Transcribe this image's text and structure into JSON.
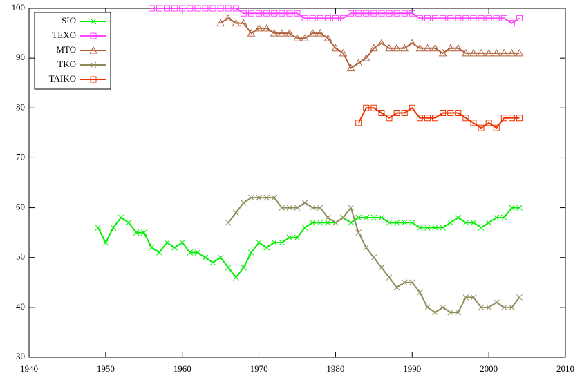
{
  "chart_data": {
    "type": "line",
    "xlim": [
      1940,
      2010
    ],
    "xticks": [
      1940,
      1950,
      1960,
      1970,
      1980,
      1990,
      2000,
      2010
    ],
    "ylim": [
      30,
      100
    ],
    "yticks": [
      30,
      40,
      50,
      60,
      70,
      80,
      90,
      100
    ],
    "legend": "top-left",
    "series": [
      {
        "name": "SIO",
        "color": "#00ee00",
        "marker": "cross",
        "x": [
          1949,
          1950,
          1951,
          1952,
          1953,
          1954,
          1955,
          1956,
          1957,
          1958,
          1959,
          1960,
          1961,
          1962,
          1963,
          1964,
          1965,
          1966,
          1967,
          1968,
          1969,
          1970,
          1971,
          1972,
          1973,
          1974,
          1975,
          1976,
          1977,
          1978,
          1979,
          1980,
          1981,
          1982,
          1983,
          1984,
          1985,
          1986,
          1987,
          1988,
          1989,
          1990,
          1991,
          1992,
          1993,
          1994,
          1995,
          1996,
          1997,
          1998,
          1999,
          2000,
          2001,
          2002,
          2003,
          2004
        ],
        "values": [
          56,
          53,
          56,
          58,
          57,
          55,
          55,
          52,
          51,
          53,
          52,
          53,
          51,
          51,
          50,
          49,
          50,
          48,
          46,
          48,
          51,
          53,
          52,
          53,
          53,
          54,
          54,
          56,
          57,
          57,
          57,
          57,
          58,
          57,
          58,
          58,
          58,
          58,
          57,
          57,
          57,
          57,
          56,
          56,
          56,
          56,
          57,
          58,
          57,
          57,
          56,
          57,
          58,
          58,
          60,
          60
        ]
      },
      {
        "name": "TEXO",
        "color": "#ff44ff",
        "marker": "square",
        "x": [
          1956,
          1957,
          1958,
          1959,
          1960,
          1961,
          1962,
          1963,
          1964,
          1965,
          1966,
          1967,
          1968,
          1969,
          1970,
          1971,
          1972,
          1973,
          1974,
          1975,
          1976,
          1977,
          1978,
          1979,
          1980,
          1981,
          1982,
          1983,
          1984,
          1985,
          1986,
          1987,
          1988,
          1989,
          1990,
          1991,
          1992,
          1993,
          1994,
          1995,
          1996,
          1997,
          1998,
          1999,
          2000,
          2001,
          2002,
          2003,
          2004
        ],
        "values": [
          100,
          100,
          100,
          100,
          100,
          100,
          100,
          100,
          100,
          100,
          100,
          100,
          99,
          99,
          99,
          99,
          99,
          99,
          99,
          99,
          98,
          98,
          98,
          98,
          98,
          98,
          99,
          99,
          99,
          99,
          99,
          99,
          99,
          99,
          99,
          98,
          98,
          98,
          98,
          98,
          98,
          98,
          98,
          98,
          98,
          98,
          98,
          97,
          98
        ]
      },
      {
        "name": "MTO",
        "color": "#b0603a",
        "marker": "triangle",
        "x": [
          1965,
          1966,
          1967,
          1968,
          1969,
          1970,
          1971,
          1972,
          1973,
          1974,
          1975,
          1976,
          1977,
          1978,
          1979,
          1980,
          1981,
          1982,
          1983,
          1984,
          1985,
          1986,
          1987,
          1988,
          1989,
          1990,
          1991,
          1992,
          1993,
          1994,
          1995,
          1996,
          1997,
          1998,
          1999,
          2000,
          2001,
          2002,
          2003,
          2004
        ],
        "values": [
          97,
          98,
          97,
          97,
          95,
          96,
          96,
          95,
          95,
          95,
          94,
          94,
          95,
          95,
          94,
          92,
          91,
          88,
          89,
          90,
          92,
          93,
          92,
          92,
          92,
          93,
          92,
          92,
          92,
          91,
          92,
          92,
          91,
          91,
          91,
          91,
          91,
          91,
          91,
          91
        ]
      },
      {
        "name": "TKO",
        "color": "#8f8a5a",
        "marker": "cross",
        "x": [
          1966,
          1967,
          1968,
          1969,
          1970,
          1971,
          1972,
          1973,
          1974,
          1975,
          1976,
          1977,
          1978,
          1979,
          1980,
          1981,
          1982,
          1983,
          1984,
          1985,
          1986,
          1987,
          1988,
          1989,
          1990,
          1991,
          1992,
          1993,
          1994,
          1995,
          1996,
          1997,
          1998,
          1999,
          2000,
          2001,
          2002,
          2003,
          2004
        ],
        "values": [
          57,
          59,
          61,
          62,
          62,
          62,
          62,
          60,
          60,
          60,
          61,
          60,
          60,
          58,
          57,
          58,
          60,
          55,
          52,
          50,
          48,
          46,
          44,
          45,
          45,
          43,
          40,
          39,
          40,
          39,
          39,
          42,
          42,
          40,
          40,
          41,
          40,
          40,
          42
        ]
      },
      {
        "name": "TAIKO",
        "color": "#ee3300",
        "marker": "square",
        "x": [
          1983,
          1984,
          1985,
          1986,
          1987,
          1988,
          1989,
          1990,
          1991,
          1992,
          1993,
          1994,
          1995,
          1996,
          1997,
          1998,
          1999,
          2000,
          2001,
          2002,
          2003,
          2004
        ],
        "values": [
          77,
          80,
          80,
          79,
          78,
          79,
          79,
          80,
          78,
          78,
          78,
          79,
          79,
          79,
          78,
          77,
          76,
          77,
          76,
          78,
          78,
          78
        ]
      }
    ]
  }
}
